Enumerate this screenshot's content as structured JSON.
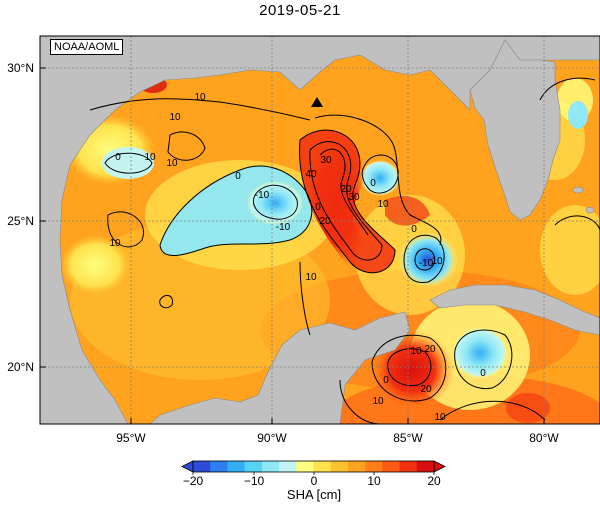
{
  "title": "2019-05-21",
  "credit": "NOAA/AOML",
  "lat_labels": [
    "30°N",
    "25°N",
    "20°N"
  ],
  "lon_labels": [
    "95°W",
    "90°W",
    "85°W",
    "80°W"
  ],
  "contour_labels": [
    "10",
    "0",
    "10",
    "10",
    "0",
    "10",
    "10",
    "-10",
    "-10",
    "0",
    "40",
    "30",
    "20",
    "30",
    "10",
    "0",
    "10",
    "20",
    "10",
    "10",
    "0",
    "-10",
    "10",
    "0",
    "20",
    "10",
    "0",
    "20"
  ],
  "colorbar": {
    "ticks": [
      "−20",
      "−10",
      "0",
      "10",
      "20"
    ],
    "label": "SHA [cm]",
    "colors": [
      "#2c4bd8",
      "#2f7ef0",
      "#33aef5",
      "#55d3f5",
      "#8ee8f5",
      "#c2f4f2",
      "#ffff80",
      "#ffe24d",
      "#ffc22e",
      "#ffa21f",
      "#ff7f1a",
      "#ff5a14",
      "#f2300f",
      "#d80f0f"
    ]
  },
  "colors": {
    "land": "#c0c0c0",
    "ocean_base": "#ffa31f",
    "grid": "#7f7f7f"
  },
  "marker": "triangle"
}
